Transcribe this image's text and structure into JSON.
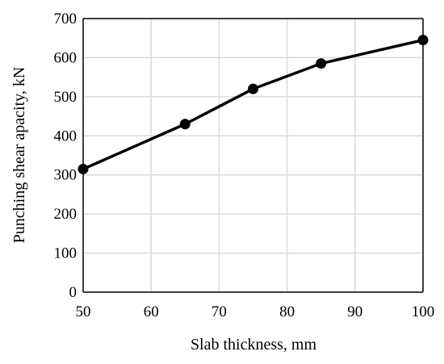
{
  "chart_data": {
    "type": "line",
    "xlabel": "Slab thickness, mm",
    "ylabel": "Punching shear apacity, kN",
    "x_ticks": [
      "50",
      "60",
      "70",
      "80",
      "90",
      "100"
    ],
    "y_ticks": [
      "0",
      "100",
      "200",
      "300",
      "400",
      "500",
      "600",
      "700"
    ],
    "xlim": [
      50,
      100
    ],
    "ylim": [
      0,
      700
    ],
    "grid": true,
    "series": [
      {
        "x": [
          50,
          65,
          75,
          85,
          100
        ],
        "y": [
          315,
          430,
          520,
          585,
          645
        ],
        "color": "#000000",
        "marker": "circle"
      }
    ]
  }
}
